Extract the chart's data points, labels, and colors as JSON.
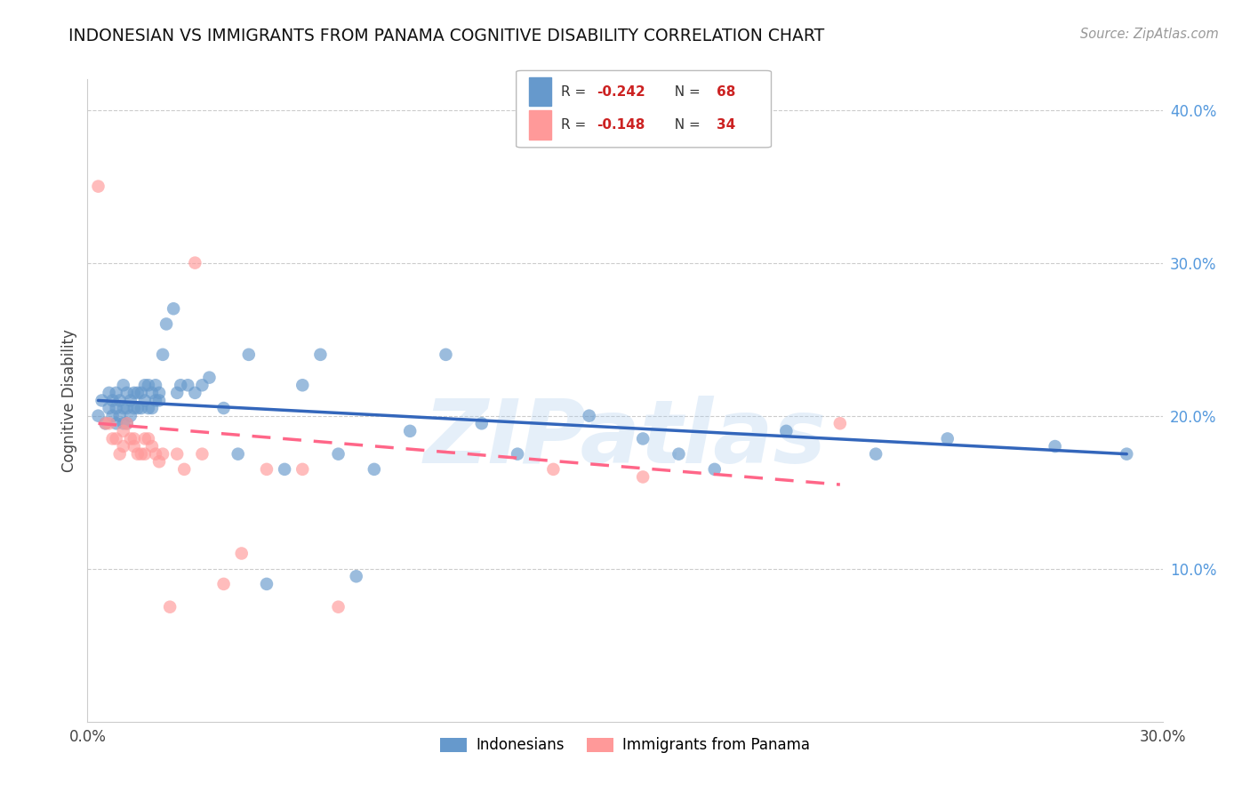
{
  "title": "INDONESIAN VS IMMIGRANTS FROM PANAMA COGNITIVE DISABILITY CORRELATION CHART",
  "source": "Source: ZipAtlas.com",
  "ylabel": "Cognitive Disability",
  "watermark": "ZIPatlas",
  "xlim": [
    0.0,
    0.3
  ],
  "ylim": [
    0.0,
    0.42
  ],
  "blue_R": -0.242,
  "blue_N": 68,
  "pink_R": -0.148,
  "pink_N": 34,
  "legend_label1": "Indonesians",
  "legend_label2": "Immigrants from Panama",
  "blue_color": "#6699CC",
  "pink_color": "#FF9999",
  "blue_line_color": "#3366BB",
  "pink_line_color": "#FF6688",
  "blue_scatter_x": [
    0.003,
    0.004,
    0.005,
    0.006,
    0.006,
    0.007,
    0.007,
    0.008,
    0.008,
    0.008,
    0.009,
    0.009,
    0.01,
    0.01,
    0.01,
    0.011,
    0.011,
    0.011,
    0.012,
    0.012,
    0.013,
    0.013,
    0.014,
    0.014,
    0.015,
    0.015,
    0.016,
    0.016,
    0.017,
    0.017,
    0.018,
    0.018,
    0.019,
    0.019,
    0.02,
    0.02,
    0.021,
    0.022,
    0.024,
    0.025,
    0.026,
    0.028,
    0.03,
    0.032,
    0.034,
    0.038,
    0.042,
    0.045,
    0.05,
    0.055,
    0.06,
    0.065,
    0.07,
    0.075,
    0.08,
    0.09,
    0.1,
    0.11,
    0.12,
    0.14,
    0.155,
    0.165,
    0.175,
    0.195,
    0.22,
    0.24,
    0.27,
    0.29
  ],
  "blue_scatter_y": [
    0.2,
    0.21,
    0.195,
    0.205,
    0.215,
    0.2,
    0.21,
    0.205,
    0.215,
    0.195,
    0.2,
    0.21,
    0.22,
    0.205,
    0.195,
    0.215,
    0.205,
    0.195,
    0.21,
    0.2,
    0.215,
    0.205,
    0.215,
    0.205,
    0.215,
    0.205,
    0.22,
    0.21,
    0.22,
    0.205,
    0.215,
    0.205,
    0.22,
    0.21,
    0.215,
    0.21,
    0.24,
    0.26,
    0.27,
    0.215,
    0.22,
    0.22,
    0.215,
    0.22,
    0.225,
    0.205,
    0.175,
    0.24,
    0.09,
    0.165,
    0.22,
    0.24,
    0.175,
    0.095,
    0.165,
    0.19,
    0.24,
    0.195,
    0.175,
    0.2,
    0.185,
    0.175,
    0.165,
    0.19,
    0.175,
    0.185,
    0.18,
    0.175
  ],
  "pink_scatter_x": [
    0.003,
    0.005,
    0.006,
    0.007,
    0.008,
    0.009,
    0.01,
    0.01,
    0.011,
    0.012,
    0.013,
    0.013,
    0.014,
    0.015,
    0.016,
    0.016,
    0.017,
    0.018,
    0.019,
    0.02,
    0.021,
    0.023,
    0.025,
    0.027,
    0.03,
    0.032,
    0.038,
    0.043,
    0.05,
    0.06,
    0.07,
    0.13,
    0.155,
    0.21
  ],
  "pink_scatter_y": [
    0.35,
    0.195,
    0.195,
    0.185,
    0.185,
    0.175,
    0.19,
    0.18,
    0.195,
    0.185,
    0.185,
    0.18,
    0.175,
    0.175,
    0.185,
    0.175,
    0.185,
    0.18,
    0.175,
    0.17,
    0.175,
    0.075,
    0.175,
    0.165,
    0.3,
    0.175,
    0.09,
    0.11,
    0.165,
    0.165,
    0.075,
    0.165,
    0.16,
    0.195
  ],
  "blue_line_x": [
    0.003,
    0.29
  ],
  "blue_line_y": [
    0.21,
    0.175
  ],
  "pink_line_x": [
    0.003,
    0.21
  ],
  "pink_line_y": [
    0.195,
    0.155
  ]
}
